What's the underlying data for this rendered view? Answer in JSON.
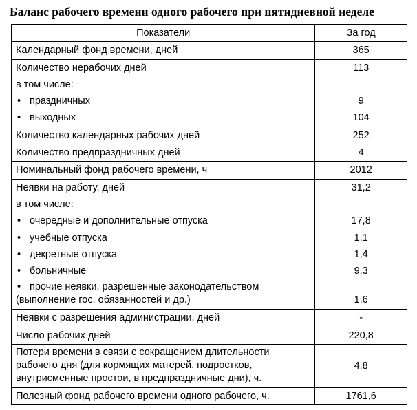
{
  "title": "Баланс рабочего времени одного рабочего при пятидневной неделе",
  "headers": [
    "Показатели",
    "За год"
  ],
  "rows": {
    "r0": {
      "label": "Календарный фонд времени, дней",
      "value": "365"
    },
    "r1": {
      "label": "Количество нерабочих дней",
      "value": "113",
      "sub_intro": "в том числе:",
      "items": [
        {
          "label": "праздничных",
          "value": "9"
        },
        {
          "label": "выходных",
          "value": "104"
        }
      ]
    },
    "r2": {
      "label": "Количество календарных рабочих дней",
      "value": "252"
    },
    "r3": {
      "label": "Количество предпраздничных дней",
      "value": "4"
    },
    "r4": {
      "label": "Номинальный фонд рабочего времени, ч",
      "value": "2012"
    },
    "r5": {
      "label": "Неявки на работу, дней",
      "value": "31,2",
      "sub_intro": "в том числе:",
      "items": [
        {
          "label": "очередные и дополнительные отпуска",
          "value": "17,8"
        },
        {
          "label": "учебные отпуска",
          "value": "1,1"
        },
        {
          "label": "декретные отпуска",
          "value": "1,4"
        },
        {
          "label": "больничные",
          "value": "9,3"
        },
        {
          "label_line1": "прочие неявки, разрешенные законодательством",
          "label_line2": "(выполнение гос. обязанностей и др.)",
          "value": "1,6"
        }
      ]
    },
    "r6": {
      "label": "Неявки с разрешения администрации, дней",
      "value": "-"
    },
    "r7": {
      "label": "Число рабочих дней",
      "value": "220,8"
    },
    "r8": {
      "label_line1": "Потери времени в связи с сокращением длительности",
      "label_line2": "рабочего дня (для кормящих матерей, подростков,",
      "label_line3": "внутрисменные простои, в предпраздничные дни), ч.",
      "value": "4,8"
    },
    "r9": {
      "label": "Полезный фонд рабочего времени одного рабочего, ч.",
      "value": "1761,6"
    }
  }
}
